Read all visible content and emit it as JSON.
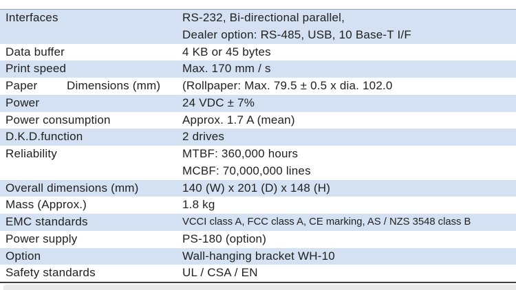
{
  "table": {
    "rows": [
      {
        "label": "Interfaces",
        "sublabel": "",
        "value_lines": [
          "RS-232, Bi-directional parallel,",
          "Dealer option: RS-485, USB, 10 Base-T I/F"
        ],
        "shaded": true,
        "small": false
      },
      {
        "label": "Data buffer",
        "sublabel": "",
        "value_lines": [
          "4 KB or 45 bytes"
        ],
        "shaded": false,
        "small": false
      },
      {
        "label": "Print speed",
        "sublabel": "",
        "value_lines": [
          "Max. 170 mm / s"
        ],
        "shaded": true,
        "small": false
      },
      {
        "label": "Paper",
        "sublabel": "Dimensions (mm)",
        "value_lines": [
          "(Rollpaper: Max. 79.5 ± 0.5 x dia. 102.0"
        ],
        "shaded": false,
        "small": false
      },
      {
        "label": "Power",
        "sublabel": "",
        "value_lines": [
          "24 VDC ± 7%"
        ],
        "shaded": true,
        "small": false
      },
      {
        "label": "Power consumption",
        "sublabel": "",
        "value_lines": [
          "Approx. 1.7 A (mean)"
        ],
        "shaded": false,
        "small": false
      },
      {
        "label": "D.K.D.function",
        "sublabel": "",
        "value_lines": [
          "2 drives"
        ],
        "shaded": true,
        "small": false
      },
      {
        "label": "Reliability",
        "sublabel": "",
        "value_lines": [
          "MTBF: 360,000 hours",
          "MCBF: 70,000,000 lines"
        ],
        "shaded": false,
        "small": false
      },
      {
        "label": "Overall dimensions (mm)",
        "sublabel": "",
        "value_lines": [
          "140 (W) x 201 (D) x 148 (H)"
        ],
        "shaded": true,
        "small": false
      },
      {
        "label": "Mass (Approx.)",
        "sublabel": "",
        "value_lines": [
          "1.8 kg"
        ],
        "shaded": false,
        "small": false
      },
      {
        "label": "EMC standards",
        "sublabel": "",
        "value_lines": [
          "VCCI class A, FCC class A, CE marking,  AS / NZS 3548 class B"
        ],
        "shaded": true,
        "small": true
      },
      {
        "label": "Power supply",
        "sublabel": "",
        "value_lines": [
          "PS-180 (option)"
        ],
        "shaded": false,
        "small": false
      },
      {
        "label": "Option",
        "sublabel": "",
        "value_lines": [
          "Wall-hanging bracket WH-10"
        ],
        "shaded": true,
        "small": false
      },
      {
        "label": "Safety standards",
        "sublabel": "",
        "value_lines": [
          "UL / CSA / EN"
        ],
        "shaded": false,
        "small": false
      }
    ],
    "colors": {
      "shaded_row": "#d3e1f2",
      "plain_row": "#ffffff",
      "top_border": "#9aa1aa",
      "bottom_border": "#3e3e3e",
      "footer_strip": "#e9e9e9",
      "text": "#212121"
    }
  }
}
